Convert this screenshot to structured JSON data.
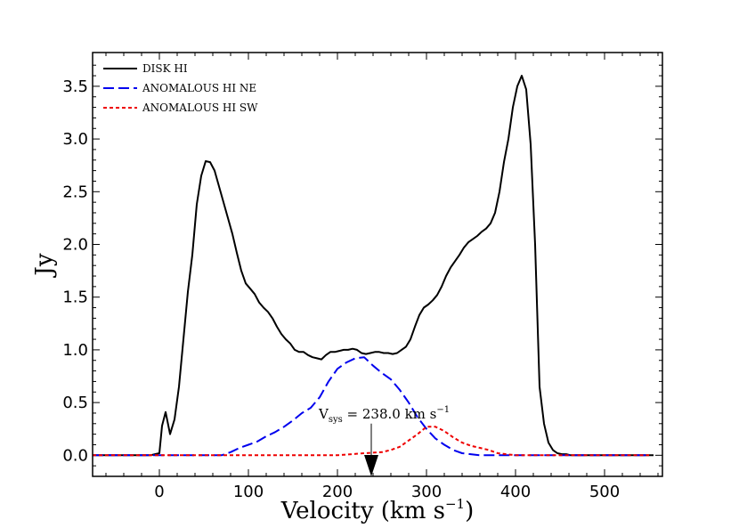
{
  "chart_data": {
    "type": "line",
    "title": "",
    "xlabel": "Velocity (km s",
    "xlabel_sup": "−1",
    "xlabel_close": ")",
    "ylabel": "Jy",
    "xlim": [
      -75,
      565
    ],
    "ylim": [
      -0.2,
      3.82
    ],
    "xticks": [
      0,
      100,
      200,
      300,
      400,
      500
    ],
    "xtick_labels": [
      "0",
      "100",
      "200",
      "300",
      "400",
      "500"
    ],
    "yticks": [
      0.0,
      0.5,
      1.0,
      1.5,
      2.0,
      2.5,
      3.0,
      3.5
    ],
    "ytick_labels": [
      "0.0",
      "0.5",
      "1.0",
      "1.5",
      "2.0",
      "2.5",
      "3.0",
      "3.5"
    ],
    "legend_position": "top-left",
    "series": [
      {
        "name": "DISK HI",
        "color": "#000000",
        "style": "solid",
        "x": [
          -75,
          -60,
          -50,
          -40,
          -30,
          -20,
          -10,
          -5,
          0,
          3,
          7,
          12,
          17,
          22,
          27,
          32,
          37,
          42,
          47,
          52,
          57,
          62,
          67,
          72,
          77,
          82,
          87,
          92,
          97,
          102,
          107,
          112,
          117,
          122,
          127,
          132,
          137,
          142,
          147,
          152,
          157,
          162,
          167,
          172,
          177,
          182,
          187,
          192,
          197,
          202,
          207,
          212,
          217,
          222,
          227,
          232,
          237,
          242,
          247,
          252,
          257,
          262,
          267,
          272,
          277,
          282,
          287,
          292,
          297,
          302,
          307,
          312,
          317,
          322,
          327,
          332,
          337,
          342,
          347,
          352,
          357,
          362,
          367,
          372,
          377,
          382,
          387,
          392,
          397,
          402,
          407,
          412,
          417,
          422,
          427,
          432,
          437,
          442,
          447,
          452,
          457,
          462,
          467,
          472,
          477,
          482,
          487,
          492,
          497,
          502,
          510,
          520,
          530,
          540,
          550,
          555
        ],
        "y": [
          0.0,
          0.0,
          0.0,
          0.0,
          0.0,
          0.0,
          0.0,
          0.01,
          0.02,
          0.28,
          0.41,
          0.2,
          0.34,
          0.65,
          1.1,
          1.55,
          1.9,
          2.38,
          2.65,
          2.79,
          2.78,
          2.7,
          2.55,
          2.4,
          2.25,
          2.1,
          1.92,
          1.75,
          1.63,
          1.58,
          1.53,
          1.45,
          1.4,
          1.36,
          1.3,
          1.22,
          1.15,
          1.1,
          1.06,
          1.0,
          0.98,
          0.98,
          0.95,
          0.93,
          0.92,
          0.91,
          0.95,
          0.98,
          0.98,
          0.99,
          1.0,
          1.0,
          1.01,
          1.0,
          0.97,
          0.96,
          0.97,
          0.98,
          0.98,
          0.97,
          0.97,
          0.96,
          0.97,
          1.0,
          1.03,
          1.1,
          1.22,
          1.33,
          1.4,
          1.43,
          1.47,
          1.52,
          1.6,
          1.7,
          1.78,
          1.84,
          1.9,
          1.97,
          2.02,
          2.05,
          2.08,
          2.12,
          2.15,
          2.2,
          2.3,
          2.5,
          2.78,
          3.0,
          3.3,
          3.5,
          3.6,
          3.47,
          2.95,
          2.0,
          0.65,
          0.3,
          0.12,
          0.05,
          0.02,
          0.01,
          0.01,
          0.0,
          0.0,
          0.0,
          0.0,
          0.0,
          0.0,
          0.0,
          0.0,
          0.0,
          0.0,
          0.0,
          0.0,
          0.0,
          0.0,
          0.0
        ]
      },
      {
        "name": "ANOMALOUS HI NE",
        "color": "#0000ee",
        "style": "dashed",
        "x": [
          -75,
          -50,
          -25,
          0,
          25,
          50,
          70,
          80,
          90,
          100,
          110,
          120,
          130,
          140,
          150,
          160,
          170,
          180,
          190,
          200,
          210,
          220,
          230,
          240,
          250,
          260,
          270,
          280,
          290,
          300,
          310,
          320,
          330,
          340,
          360,
          400,
          450,
          500,
          550
        ],
        "y": [
          0.0,
          0.0,
          0.0,
          0.0,
          0.0,
          0.0,
          0.0,
          0.03,
          0.07,
          0.1,
          0.13,
          0.18,
          0.22,
          0.27,
          0.33,
          0.4,
          0.45,
          0.55,
          0.7,
          0.82,
          0.88,
          0.92,
          0.93,
          0.85,
          0.78,
          0.72,
          0.62,
          0.5,
          0.36,
          0.25,
          0.16,
          0.1,
          0.05,
          0.02,
          0.0,
          0.0,
          0.0,
          0.0,
          0.0
        ]
      },
      {
        "name": "ANOMALOUS HI SW",
        "color": "#ee0000",
        "style": "dotted",
        "x": [
          -75,
          -50,
          -25,
          0,
          50,
          100,
          150,
          200,
          230,
          250,
          260,
          270,
          280,
          290,
          300,
          310,
          320,
          330,
          340,
          350,
          360,
          370,
          380,
          400,
          450,
          500,
          550
        ],
        "y": [
          0.0,
          0.0,
          0.0,
          0.0,
          0.0,
          0.0,
          0.0,
          0.0,
          0.02,
          0.03,
          0.05,
          0.08,
          0.14,
          0.2,
          0.27,
          0.27,
          0.23,
          0.17,
          0.12,
          0.09,
          0.07,
          0.05,
          0.02,
          0.0,
          0.0,
          0.0,
          0.0
        ]
      }
    ],
    "annotation": {
      "label_main": "V",
      "label_sub": "sys",
      "label_rest": " = 238.0 km s",
      "label_sup": "−1",
      "x": 238,
      "arrow_from_y": 0.3,
      "arrow_to_y": -0.2
    }
  }
}
